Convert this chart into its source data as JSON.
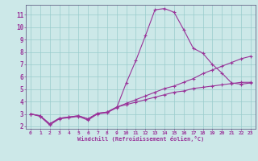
{
  "xlabel": "Windchill (Refroidissement éolien,°C)",
  "bg_color": "#cce8e8",
  "grid_color": "#99cccc",
  "line_color": "#993399",
  "spine_color": "#666688",
  "xlim": [
    -0.5,
    23.5
  ],
  "ylim": [
    1.8,
    11.8
  ],
  "xticks": [
    0,
    1,
    2,
    3,
    4,
    5,
    6,
    7,
    8,
    9,
    10,
    11,
    12,
    13,
    14,
    15,
    16,
    17,
    18,
    19,
    20,
    21,
    22,
    23
  ],
  "yticks": [
    2,
    3,
    4,
    5,
    6,
    7,
    8,
    9,
    10,
    11
  ],
  "curve1_x": [
    0,
    1,
    2,
    3,
    4,
    5,
    6,
    7,
    8,
    9,
    10,
    11,
    12,
    13,
    14,
    15,
    16,
    17,
    18,
    19,
    20,
    21,
    22,
    23
  ],
  "curve1_y": [
    3.0,
    2.8,
    2.1,
    2.6,
    2.7,
    2.8,
    2.5,
    3.0,
    3.1,
    3.5,
    5.5,
    7.3,
    9.3,
    11.4,
    11.5,
    11.2,
    9.8,
    8.3,
    7.9,
    7.0,
    6.3,
    5.5,
    5.4,
    5.5
  ],
  "curve2_x": [
    0,
    1,
    2,
    3,
    4,
    5,
    6,
    7,
    8,
    9,
    10,
    11,
    12,
    13,
    14,
    15,
    16,
    17,
    18,
    19,
    20,
    21,
    22,
    23
  ],
  "curve2_y": [
    3.0,
    2.85,
    2.2,
    2.65,
    2.75,
    2.85,
    2.6,
    3.05,
    3.15,
    3.55,
    3.85,
    4.15,
    4.45,
    4.75,
    5.05,
    5.25,
    5.55,
    5.85,
    6.25,
    6.55,
    6.85,
    7.15,
    7.45,
    7.65
  ],
  "curve3_x": [
    0,
    1,
    2,
    3,
    4,
    5,
    6,
    7,
    8,
    9,
    10,
    11,
    12,
    13,
    14,
    15,
    16,
    17,
    18,
    19,
    20,
    21,
    22,
    23
  ],
  "curve3_y": [
    3.0,
    2.85,
    2.2,
    2.65,
    2.75,
    2.85,
    2.6,
    3.05,
    3.15,
    3.55,
    3.75,
    3.95,
    4.15,
    4.35,
    4.55,
    4.75,
    4.85,
    5.05,
    5.15,
    5.25,
    5.35,
    5.45,
    5.55,
    5.55
  ]
}
